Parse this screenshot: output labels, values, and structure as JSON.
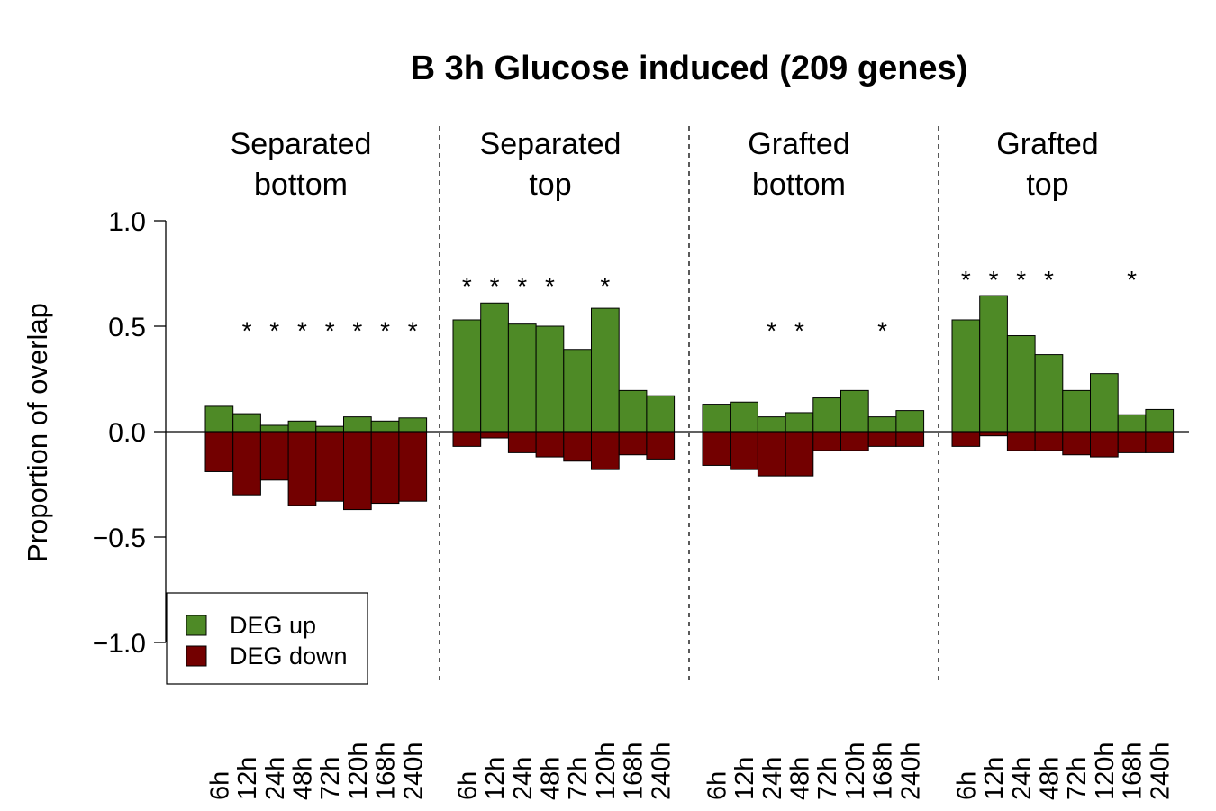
{
  "chart_data": {
    "type": "bar",
    "title": "B 3h Glucose induced (209 genes)",
    "ylabel": "Proportion of overlap",
    "ylim": [
      -1.0,
      1.0
    ],
    "yticks": [
      "−1.0",
      "−0.5",
      "0.0",
      "0.5",
      "1.0"
    ],
    "ytick_values": [
      -1.0,
      -0.5,
      0.0,
      0.5,
      1.0
    ],
    "categories": [
      "6h",
      "12h",
      "24h",
      "48h",
      "72h",
      "120h",
      "168h",
      "240h"
    ],
    "star_symbol": "*",
    "colors": {
      "up": "#4e8a26",
      "down": "#730000"
    },
    "legend": {
      "position": "bottom-left",
      "entries": [
        {
          "label": "DEG up",
          "color": "#4e8a26"
        },
        {
          "label": "DEG down",
          "color": "#730000"
        }
      ]
    },
    "panels": [
      {
        "title_lines": [
          "Separated",
          "bottom"
        ],
        "up": [
          0.12,
          0.085,
          0.03,
          0.05,
          0.025,
          0.07,
          0.05,
          0.065
        ],
        "down": [
          -0.19,
          -0.3,
          -0.23,
          -0.35,
          -0.33,
          -0.37,
          -0.34,
          -0.33
        ],
        "stars": [
          false,
          true,
          true,
          true,
          true,
          true,
          true,
          true
        ],
        "star_y": 0.49
      },
      {
        "title_lines": [
          "Separated",
          "top"
        ],
        "up": [
          0.53,
          0.61,
          0.51,
          0.5,
          0.39,
          0.585,
          0.195,
          0.17
        ],
        "down": [
          -0.07,
          -0.03,
          -0.1,
          -0.12,
          -0.14,
          -0.18,
          -0.11,
          -0.13
        ],
        "stars": [
          true,
          true,
          true,
          true,
          false,
          true,
          false,
          false
        ],
        "star_y": 0.7
      },
      {
        "title_lines": [
          "Grafted",
          "bottom"
        ],
        "up": [
          0.13,
          0.14,
          0.07,
          0.09,
          0.16,
          0.195,
          0.07,
          0.1
        ],
        "down": [
          -0.16,
          -0.18,
          -0.21,
          -0.21,
          -0.09,
          -0.09,
          -0.07,
          -0.07
        ],
        "stars": [
          false,
          false,
          true,
          true,
          false,
          false,
          true,
          false
        ],
        "star_y": 0.49
      },
      {
        "title_lines": [
          "Grafted",
          "top"
        ],
        "up": [
          0.53,
          0.645,
          0.455,
          0.365,
          0.195,
          0.275,
          0.08,
          0.105
        ],
        "down": [
          -0.07,
          -0.02,
          -0.09,
          -0.09,
          -0.11,
          -0.12,
          -0.1,
          -0.1
        ],
        "stars": [
          true,
          true,
          true,
          true,
          false,
          false,
          true,
          false
        ],
        "star_y": 0.73
      }
    ]
  }
}
